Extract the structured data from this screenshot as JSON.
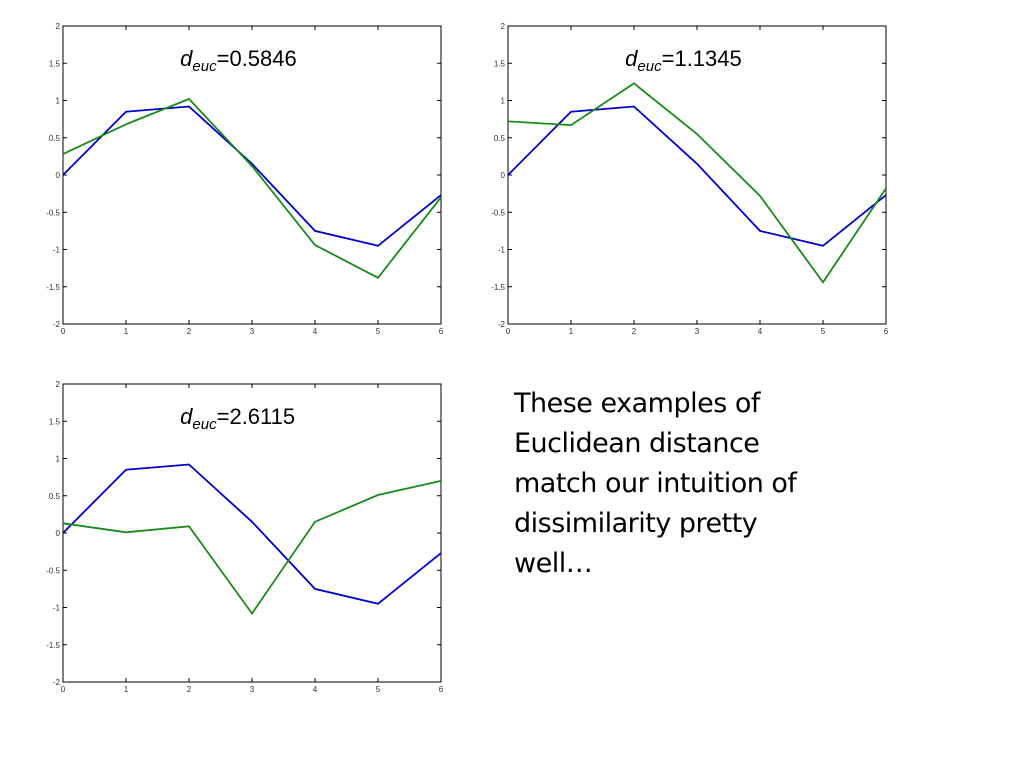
{
  "chart_data": [
    {
      "type": "line",
      "annotation": {
        "symbol": "d",
        "subscript": "euc",
        "value": "=0.5846"
      },
      "xlim": [
        0,
        6
      ],
      "ylim": [
        -2,
        2
      ],
      "xticks": [
        "0",
        "1",
        "2",
        "3",
        "4",
        "5",
        "6"
      ],
      "yticks": [
        "2",
        "1.5",
        "1",
        "0.5",
        "0",
        "-0.5",
        "-1",
        "-1.5",
        "-2"
      ],
      "series": [
        {
          "color": "#0000cc",
          "x": [
            0,
            1,
            2,
            3,
            4,
            5,
            6
          ],
          "y": [
            0.0,
            0.85,
            0.92,
            0.15,
            -0.75,
            -0.95,
            -0.27
          ]
        },
        {
          "color": "#1a8a1a",
          "x": [
            0,
            1,
            2,
            3,
            4,
            5,
            6
          ],
          "y": [
            0.28,
            0.68,
            1.02,
            0.12,
            -0.94,
            -1.38,
            -0.3
          ]
        }
      ]
    },
    {
      "type": "line",
      "annotation": {
        "symbol": "d",
        "subscript": "euc",
        "value": "=1.1345"
      },
      "xlim": [
        0,
        6
      ],
      "ylim": [
        -2,
        2
      ],
      "xticks": [
        "0",
        "1",
        "2",
        "3",
        "4",
        "5",
        "6"
      ],
      "yticks": [
        "2",
        "1.5",
        "1",
        "0.5",
        "0",
        "-0.5",
        "-1",
        "-1.5",
        "-2"
      ],
      "series": [
        {
          "color": "#0000cc",
          "x": [
            0,
            1,
            2,
            3,
            4,
            5,
            6
          ],
          "y": [
            0.0,
            0.85,
            0.92,
            0.15,
            -0.75,
            -0.95,
            -0.27
          ]
        },
        {
          "color": "#1a8a1a",
          "x": [
            0,
            1,
            2,
            3,
            4,
            5,
            6
          ],
          "y": [
            0.72,
            0.67,
            1.23,
            0.55,
            -0.28,
            -1.44,
            -0.18
          ]
        }
      ]
    },
    {
      "type": "line",
      "annotation": {
        "symbol": "d",
        "subscript": "euc",
        "value": "=2.6115"
      },
      "xlim": [
        0,
        6
      ],
      "ylim": [
        -2,
        2
      ],
      "xticks": [
        "0",
        "1",
        "2",
        "3",
        "4",
        "5",
        "6"
      ],
      "yticks": [
        "2",
        "1.5",
        "1",
        "0.5",
        "0",
        "-0.5",
        "-1",
        "-1.5",
        "-2"
      ],
      "series": [
        {
          "color": "#0000cc",
          "x": [
            0,
            1,
            2,
            3,
            4,
            5,
            6
          ],
          "y": [
            0.0,
            0.85,
            0.92,
            0.15,
            -0.75,
            -0.95,
            -0.27
          ]
        },
        {
          "color": "#1a8a1a",
          "x": [
            0,
            1,
            2,
            3,
            4,
            5,
            6
          ],
          "y": [
            0.13,
            0.01,
            0.09,
            -1.08,
            0.15,
            0.51,
            0.7
          ]
        }
      ]
    }
  ],
  "caption": {
    "lines": [
      "These examples of",
      "Euclidean distance",
      "match our intuition of",
      "dissimilarity pretty",
      "well…"
    ]
  }
}
